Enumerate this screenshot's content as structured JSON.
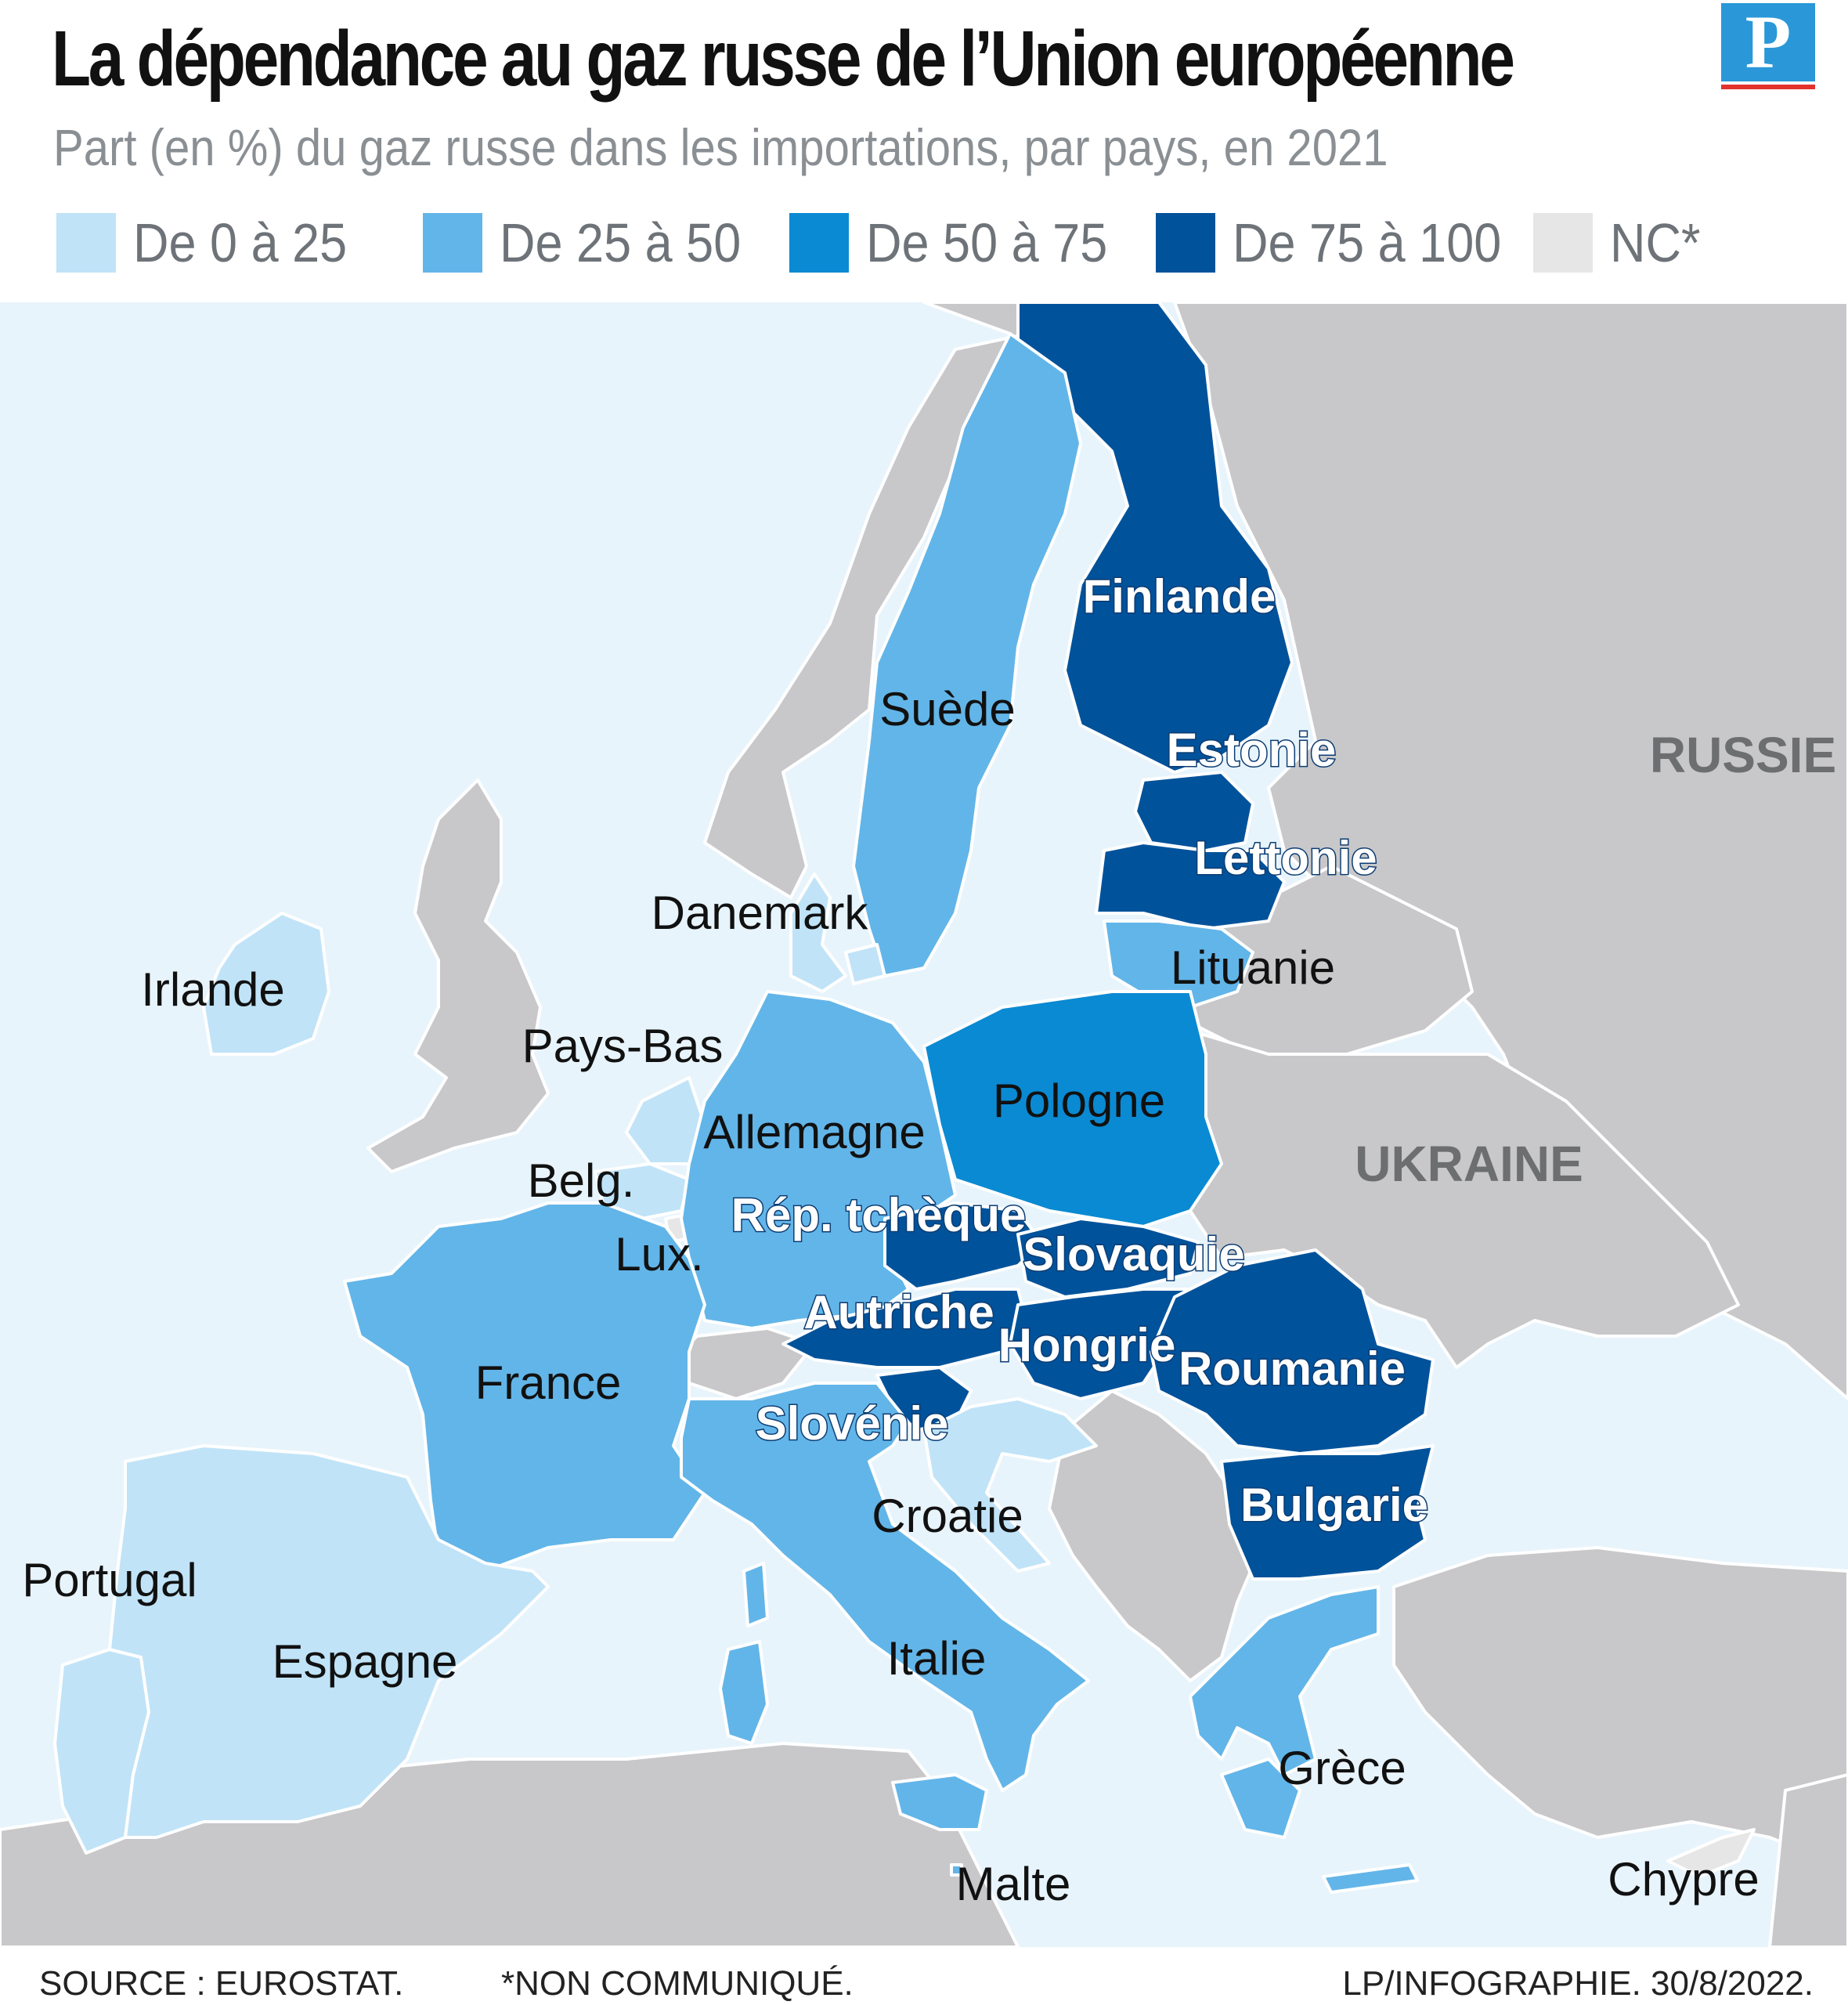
{
  "header": {
    "title": "La dépendance au gaz russe de l’Union européenne",
    "subtitle": "Part (en %) du gaz russe dans les importations, par pays, en 2021",
    "logo_letter": "P"
  },
  "legend": [
    {
      "label": "De 0 à 25",
      "color": "#c0e3f7"
    },
    {
      "label": "De 25 à 50",
      "color": "#62b5e8"
    },
    {
      "label": "De 50 à 75",
      "color": "#0a8ad2"
    },
    {
      "label": "De 75 à 100",
      "color": "#00529b"
    },
    {
      "label": "NC*",
      "color": "#e6e6e6"
    }
  ],
  "colors": {
    "sea": "#e8f4fc",
    "non_eu": "#c8c8ca",
    "border": "#ffffff"
  },
  "countries": {
    "finlande": {
      "label": "Finlande",
      "class": "75-100"
    },
    "suede": {
      "label": "Suède",
      "class": "25-50"
    },
    "estonie": {
      "label": "Estonie",
      "class": "75-100"
    },
    "lettonie": {
      "label": "Lettonie",
      "class": "75-100"
    },
    "lituanie": {
      "label": "Lituanie",
      "class": "25-50"
    },
    "danemark": {
      "label": "Danemark",
      "class": "0-25"
    },
    "irlande": {
      "label": "Irlande",
      "class": "0-25"
    },
    "pays_bas": {
      "label": "Pays-Bas",
      "class": "0-25"
    },
    "allemagne": {
      "label": "Allemagne",
      "class": "25-50"
    },
    "pologne": {
      "label": "Pologne",
      "class": "50-75"
    },
    "belgique": {
      "label": "Belg.",
      "class": "0-25"
    },
    "luxembourg": {
      "label": "Lux.",
      "class": "NC"
    },
    "rep_tcheque": {
      "label": "Rép. tchèque",
      "class": "75-100"
    },
    "slovaquie": {
      "label": "Slovaquie",
      "class": "75-100"
    },
    "autriche": {
      "label": "Autriche",
      "class": "75-100"
    },
    "hongrie": {
      "label": "Hongrie",
      "class": "75-100"
    },
    "roumanie": {
      "label": "Roumanie",
      "class": "75-100"
    },
    "france": {
      "label": "France",
      "class": "25-50"
    },
    "slovenie": {
      "label": "Slovénie",
      "class": "75-100"
    },
    "croatie": {
      "label": "Croatie",
      "class": "0-25"
    },
    "bulgarie": {
      "label": "Bulgarie",
      "class": "75-100"
    },
    "portugal": {
      "label": "Portugal",
      "class": "0-25"
    },
    "espagne": {
      "label": "Espagne",
      "class": "0-25"
    },
    "italie": {
      "label": "Italie",
      "class": "25-50"
    },
    "grece": {
      "label": "Grèce",
      "class": "25-50"
    },
    "malte": {
      "label": "Malte",
      "class": "25-50"
    },
    "chypre": {
      "label": "Chypre",
      "class": "NC"
    }
  },
  "non_eu_labels": {
    "russie": "RUSSIE",
    "ukraine": "UKRAINE"
  },
  "footer": {
    "source": "SOURCE : EUROSTAT.",
    "note": "*NON COMMUNIQUÉ.",
    "credit": "LP/INFOGRAPHIE. 30/8/2022."
  }
}
